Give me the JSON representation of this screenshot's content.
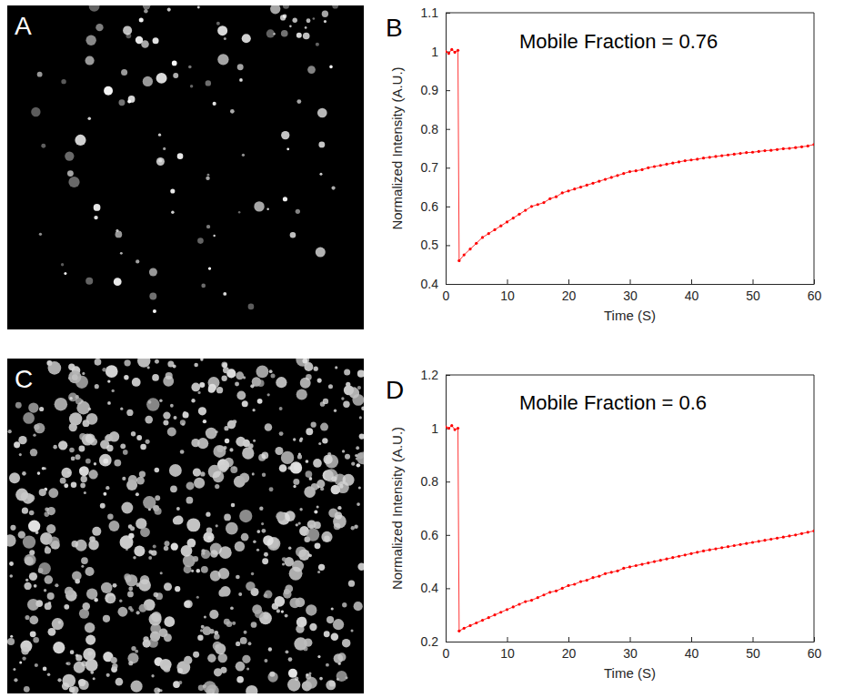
{
  "images": [
    {
      "panel_label": "A"
    },
    {
      "panel_label": "C"
    }
  ],
  "chart_data": [
    {
      "type": "line",
      "panel_label": "B",
      "annotations": [
        "Mobile Fraction = 0.76"
      ],
      "x_label": "Time (S)",
      "y_label": "Normalized Intensity (A.U.)",
      "xlim": [
        0,
        60
      ],
      "xticks": [
        0,
        10,
        20,
        30,
        40,
        50,
        60
      ],
      "ylim": [
        0.4,
        1.1
      ],
      "yticks": [
        0.4,
        0.5,
        0.6,
        0.7,
        0.8,
        0.9,
        1,
        1.1
      ],
      "grid": false,
      "color": "#ff0000",
      "marker": "point",
      "line_style": "solid",
      "x": [
        0,
        0.5,
        1,
        1.5,
        2,
        2.2,
        3,
        4,
        5,
        6,
        7,
        8,
        9,
        10,
        11,
        12,
        13,
        14,
        15,
        16,
        17,
        18,
        19,
        20,
        21,
        22,
        23,
        24,
        25,
        26,
        27,
        28,
        29,
        30,
        31,
        32,
        33,
        34,
        35,
        36,
        37,
        38,
        39,
        40,
        41,
        42,
        43,
        44,
        45,
        46,
        47,
        48,
        49,
        50,
        51,
        52,
        53,
        54,
        55,
        56,
        57,
        58,
        59,
        60
      ],
      "series": [
        {
          "values": [
            1.0,
            0.995,
            1.005,
            0.998,
            1.003,
            0.46,
            0.475,
            0.49,
            0.505,
            0.52,
            0.53,
            0.54,
            0.55,
            0.56,
            0.57,
            0.58,
            0.59,
            0.6,
            0.605,
            0.61,
            0.62,
            0.625,
            0.635,
            0.64,
            0.645,
            0.65,
            0.655,
            0.66,
            0.665,
            0.67,
            0.675,
            0.68,
            0.685,
            0.69,
            0.692,
            0.695,
            0.7,
            0.703,
            0.706,
            0.709,
            0.712,
            0.715,
            0.718,
            0.72,
            0.722,
            0.725,
            0.727,
            0.729,
            0.731,
            0.733,
            0.735,
            0.737,
            0.739,
            0.74,
            0.742,
            0.744,
            0.745,
            0.747,
            0.749,
            0.75,
            0.752,
            0.754,
            0.756,
            0.76
          ]
        }
      ]
    },
    {
      "type": "line",
      "panel_label": "D",
      "annotations": [
        "Mobile Fraction = 0.6"
      ],
      "x_label": "Time (S)",
      "y_label": "Normalized Intensity (A.U.)",
      "xlim": [
        0,
        60
      ],
      "xticks": [
        0,
        10,
        20,
        30,
        40,
        50,
        60
      ],
      "ylim": [
        0.2,
        1.2
      ],
      "yticks": [
        0.2,
        0.4,
        0.6,
        0.8,
        1,
        1.2
      ],
      "grid": false,
      "color": "#ff0000",
      "marker": "point",
      "line_style": "solid",
      "x": [
        0,
        0.5,
        1,
        1.5,
        2,
        2.2,
        3,
        4,
        5,
        6,
        7,
        8,
        9,
        10,
        11,
        12,
        13,
        14,
        15,
        16,
        17,
        18,
        19,
        20,
        21,
        22,
        23,
        24,
        25,
        26,
        27,
        28,
        29,
        30,
        31,
        32,
        33,
        34,
        35,
        36,
        37,
        38,
        39,
        40,
        41,
        42,
        43,
        44,
        45,
        46,
        47,
        48,
        49,
        50,
        51,
        52,
        53,
        54,
        55,
        56,
        57,
        58,
        59,
        60
      ],
      "series": [
        {
          "values": [
            1.005,
            1.0,
            1.01,
            0.995,
            1.0,
            0.24,
            0.25,
            0.26,
            0.27,
            0.28,
            0.29,
            0.3,
            0.31,
            0.32,
            0.33,
            0.34,
            0.35,
            0.355,
            0.365,
            0.375,
            0.385,
            0.39,
            0.4,
            0.41,
            0.415,
            0.425,
            0.43,
            0.44,
            0.445,
            0.455,
            0.46,
            0.465,
            0.475,
            0.48,
            0.485,
            0.49,
            0.495,
            0.5,
            0.505,
            0.51,
            0.515,
            0.52,
            0.525,
            0.53,
            0.535,
            0.54,
            0.544,
            0.548,
            0.552,
            0.556,
            0.56,
            0.564,
            0.568,
            0.572,
            0.576,
            0.58,
            0.584,
            0.588,
            0.592,
            0.596,
            0.6,
            0.605,
            0.61,
            0.615
          ]
        }
      ]
    }
  ]
}
